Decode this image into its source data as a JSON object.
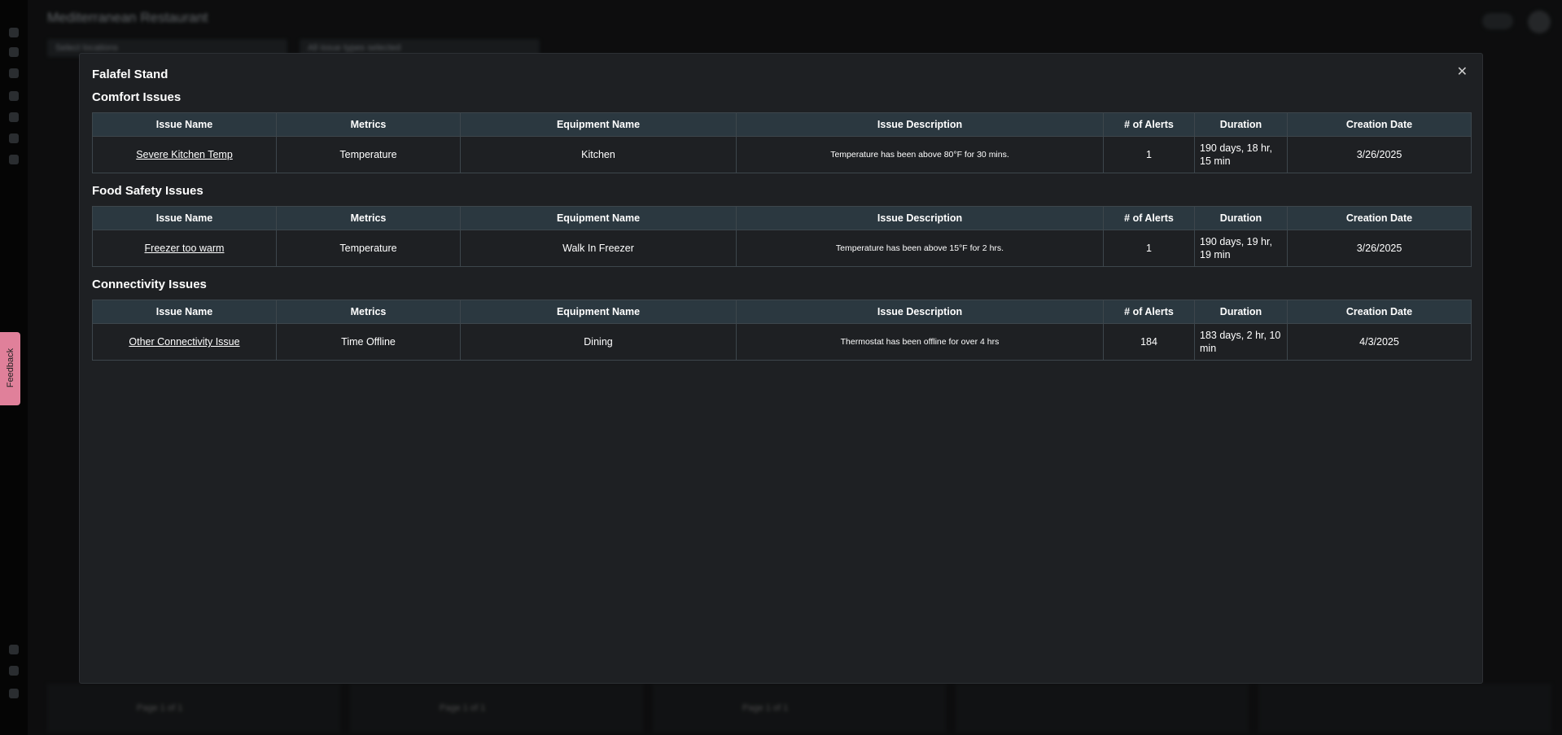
{
  "background": {
    "title": "Mediterranean Restaurant",
    "filters": [
      "Select locations",
      "All issue types selected"
    ],
    "pagination": [
      "Page 1 of 1",
      "Page 1 of 1",
      "Page 1 of 1"
    ]
  },
  "feedback": "Feedback",
  "modal": {
    "title": "Falafel Stand",
    "columns": [
      "Issue Name",
      "Metrics",
      "Equipment Name",
      "Issue Description",
      "# of Alerts",
      "Duration",
      "Creation Date"
    ],
    "sections": [
      {
        "title": "Comfort Issues",
        "rows": [
          [
            "Severe Kitchen Temp",
            "Temperature",
            "Kitchen",
            "Temperature has been above 80°F for 30 mins.",
            "1",
            "190 days, 18 hr, 15 min",
            "3/26/2025"
          ]
        ]
      },
      {
        "title": "Food Safety Issues",
        "rows": [
          [
            "Freezer too warm",
            "Temperature",
            "Walk In Freezer",
            "Temperature has been above 15°F for 2 hrs.",
            "1",
            "190 days, 19 hr, 19 min",
            "3/26/2025"
          ]
        ]
      },
      {
        "title": "Connectivity Issues",
        "rows": [
          [
            "Other Connectivity Issue",
            "Time Offline",
            "Dining",
            "Thermostat has been offline for over 4 hrs",
            "184",
            "183 days, 2 hr, 10 min",
            "4/3/2025"
          ]
        ]
      }
    ]
  }
}
